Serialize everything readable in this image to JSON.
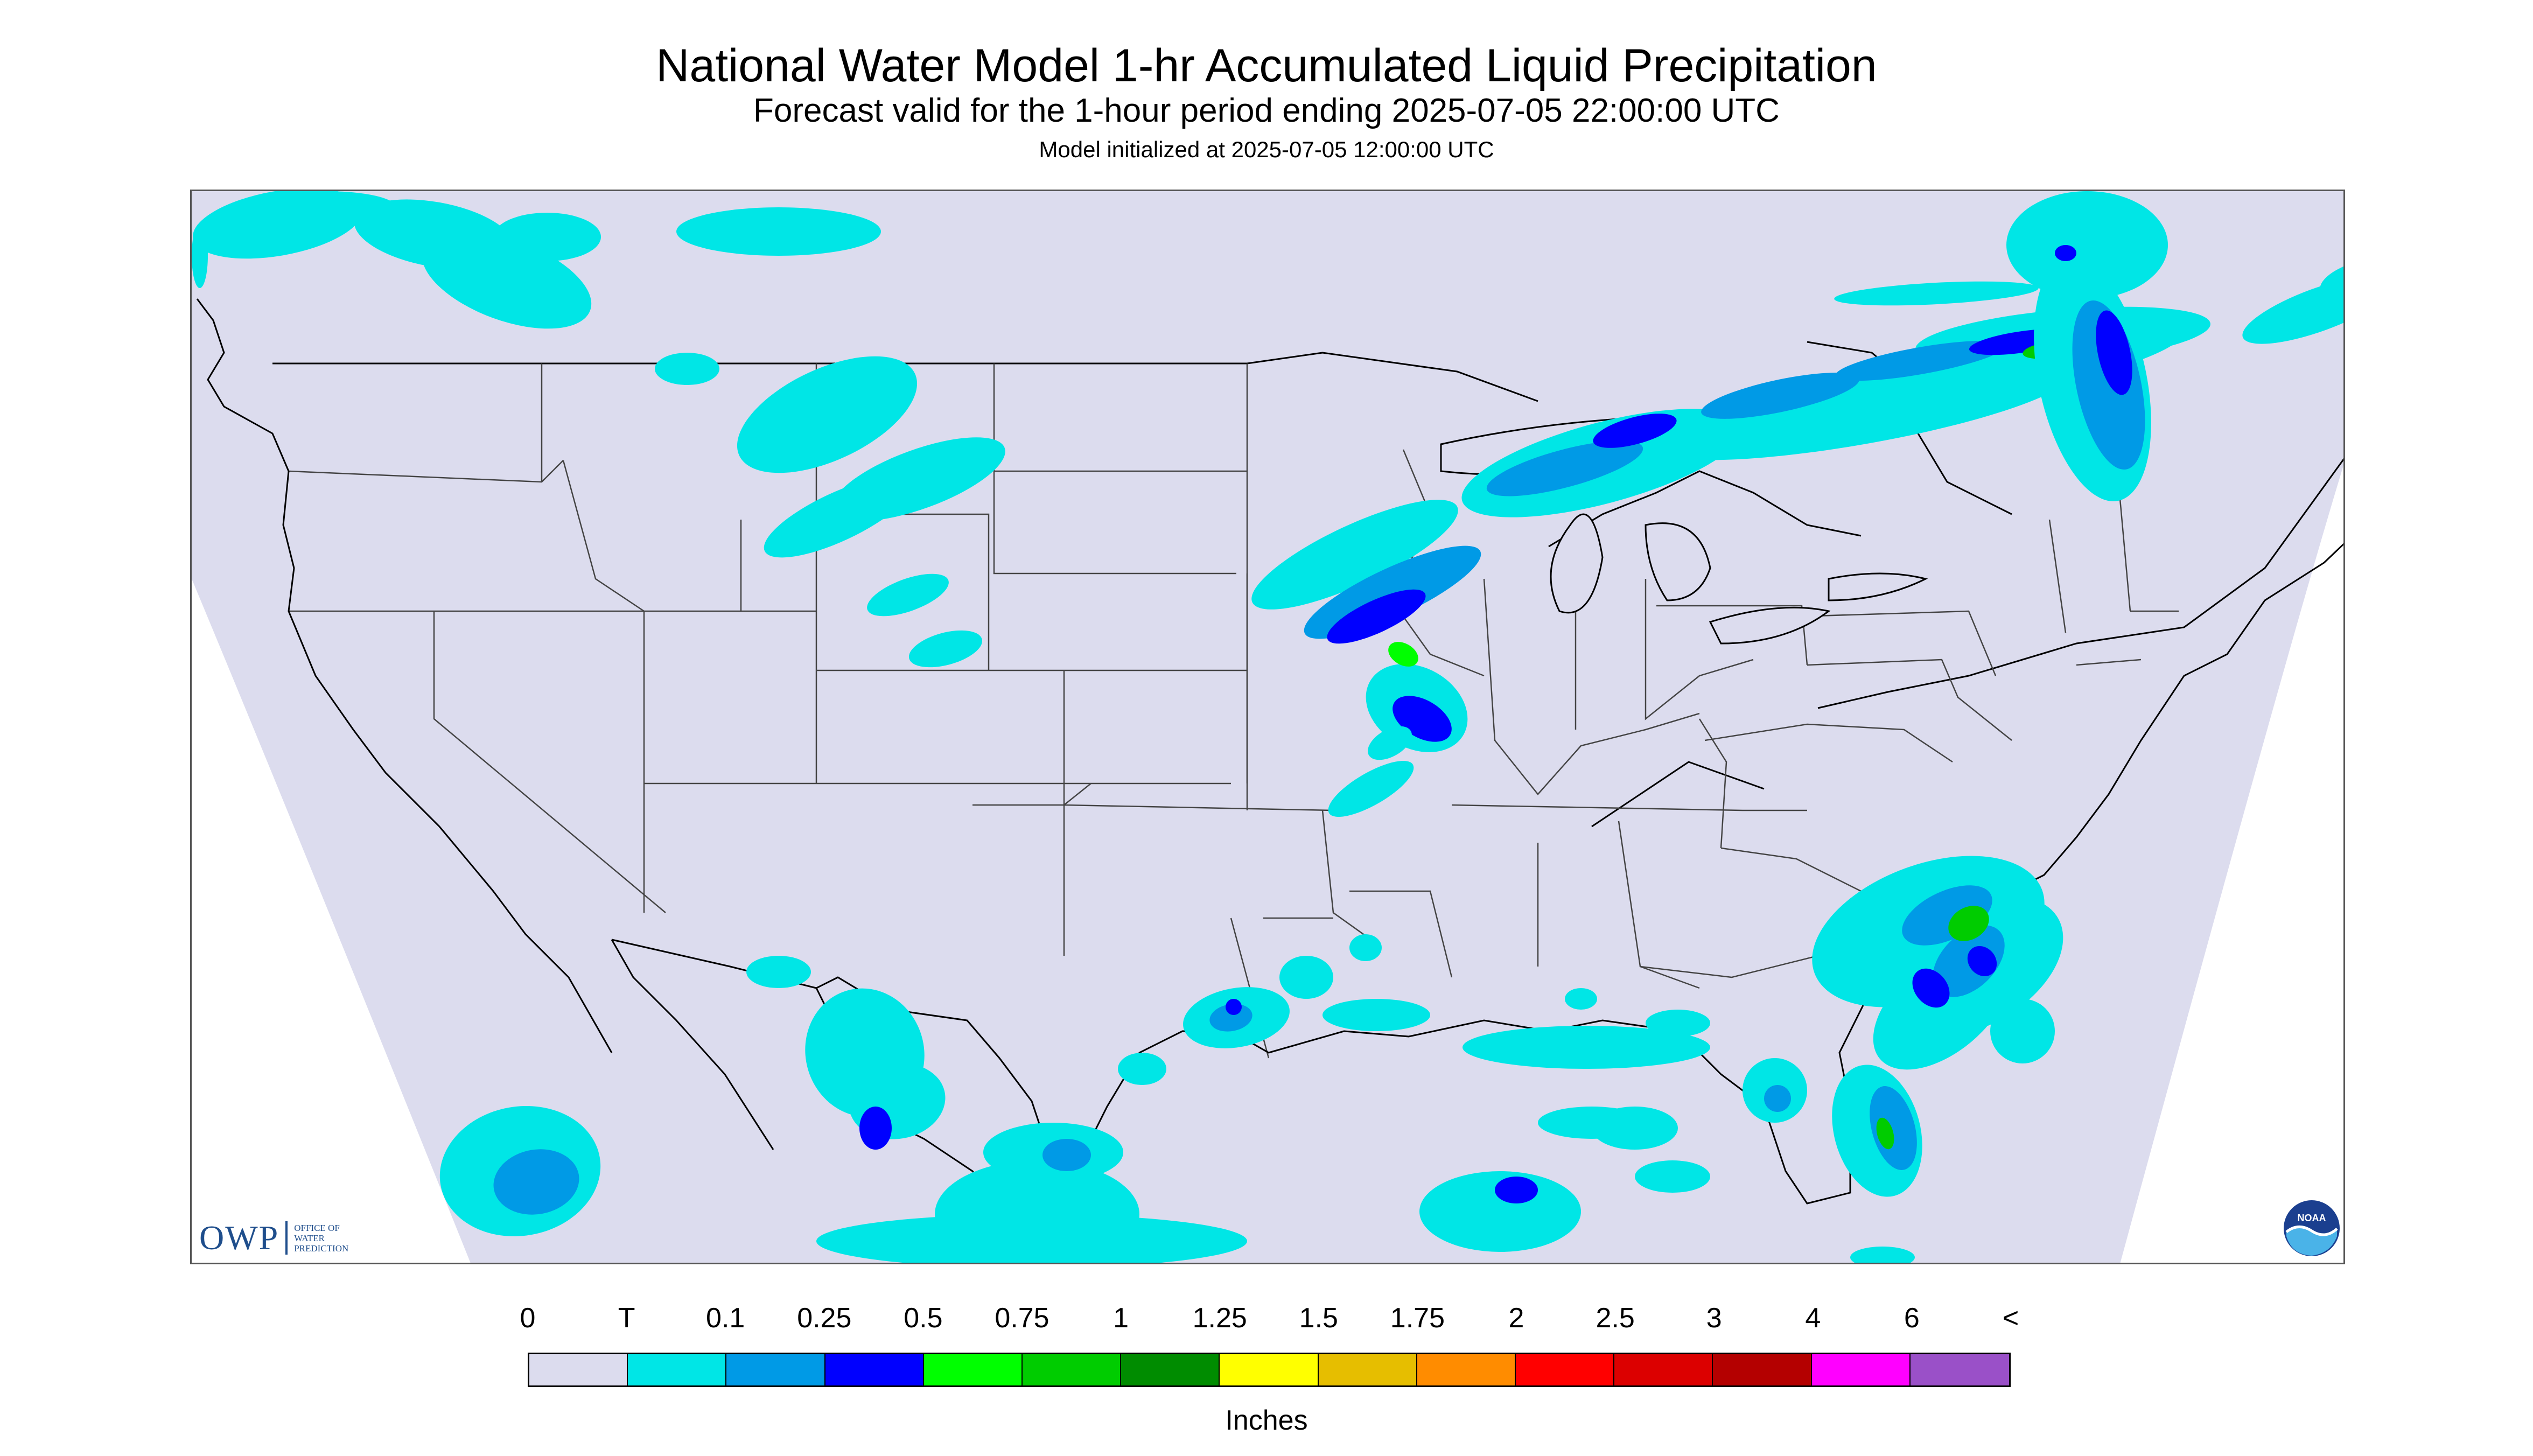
{
  "header": {
    "title": "National Water Model 1-hr Accumulated Liquid Precipitation",
    "subtitle": "Forecast valid for the 1-hour period ending 2025-07-05 22:00:00 UTC",
    "init": "Model initialized at 2025-07-05 12:00:00 UTC"
  },
  "map": {
    "background_color": "#dcdcee",
    "outside_color": "#ffffff",
    "boundary_color": "#444444",
    "coast_color": "#000000"
  },
  "logos": {
    "owp_letters": "OWP",
    "owp_line1": "OFFICE OF",
    "owp_line2": "WATER",
    "owp_line3": "PREDICTION",
    "noaa_text": "NOAA",
    "noaa_colors": [
      "#1b3f8f",
      "#4ab3e8",
      "#ffffff"
    ]
  },
  "legend": {
    "labels": [
      "0",
      "T",
      "0.1",
      "0.25",
      "0.5",
      "0.75",
      "1",
      "1.25",
      "1.5",
      "1.75",
      "2",
      "2.5",
      "3",
      "4",
      "6",
      "<"
    ],
    "colors": [
      "#dcdcee",
      "#00e6e6",
      "#009ae6",
      "#0000ff",
      "#00ff00",
      "#00cc00",
      "#008c00",
      "#ffff00",
      "#e6be00",
      "#ff8c00",
      "#ff0000",
      "#dc0000",
      "#b40000",
      "#ff00ff",
      "#9a50c8"
    ],
    "units": "Inches"
  },
  "precip_regions": [
    {
      "name": "pacific-northwest",
      "level": 1
    },
    {
      "name": "northern-rockies",
      "level": 1
    },
    {
      "name": "upper-midwest-band",
      "level": 4
    },
    {
      "name": "great-lakes-ontario-band",
      "level": 5
    },
    {
      "name": "quebec-band",
      "level": 3
    },
    {
      "name": "southeast-coast",
      "level": 5
    },
    {
      "name": "gulf-coast",
      "level": 3
    },
    {
      "name": "texas-mexico",
      "level": 3
    },
    {
      "name": "south-florida",
      "level": 2
    }
  ]
}
